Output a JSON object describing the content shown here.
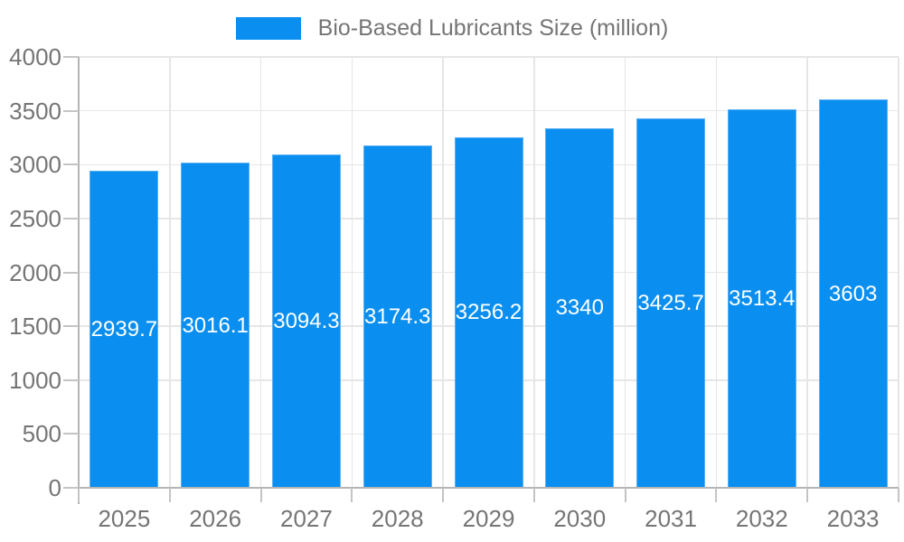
{
  "chart_data": {
    "type": "bar",
    "title": "Bio-Based Lubricants Size (million)",
    "categories": [
      "2025",
      "2026",
      "2027",
      "2028",
      "2029",
      "2030",
      "2031",
      "2032",
      "2033"
    ],
    "values": [
      2939.7,
      3016.1,
      3094.3,
      3174.3,
      3256.2,
      3340,
      3425.7,
      3513.4,
      3603
    ],
    "value_labels": [
      "2939.7",
      "3016.1",
      "3094.3",
      "3174.3",
      "3256.2",
      "3340",
      "3425.7",
      "3513.4",
      "3603"
    ],
    "xlabel": "",
    "ylabel": "",
    "ylim": [
      0,
      4000
    ],
    "yticks": [
      0,
      500,
      1000,
      1500,
      2000,
      2500,
      3000,
      3500,
      4000
    ],
    "grid": {
      "horizontal": true,
      "vertical": true
    },
    "legend_position": "top-center",
    "value_label_position": "inside-middle",
    "colors": {
      "bar": "#0a8ff0",
      "bar_edge": "#5cb0f4",
      "bar_label": "#ffffff",
      "axis_text": "#757575",
      "gridline": "#e6e6e6",
      "axis_line": "#b5b5b5",
      "tick": "#c4c4c4"
    }
  }
}
